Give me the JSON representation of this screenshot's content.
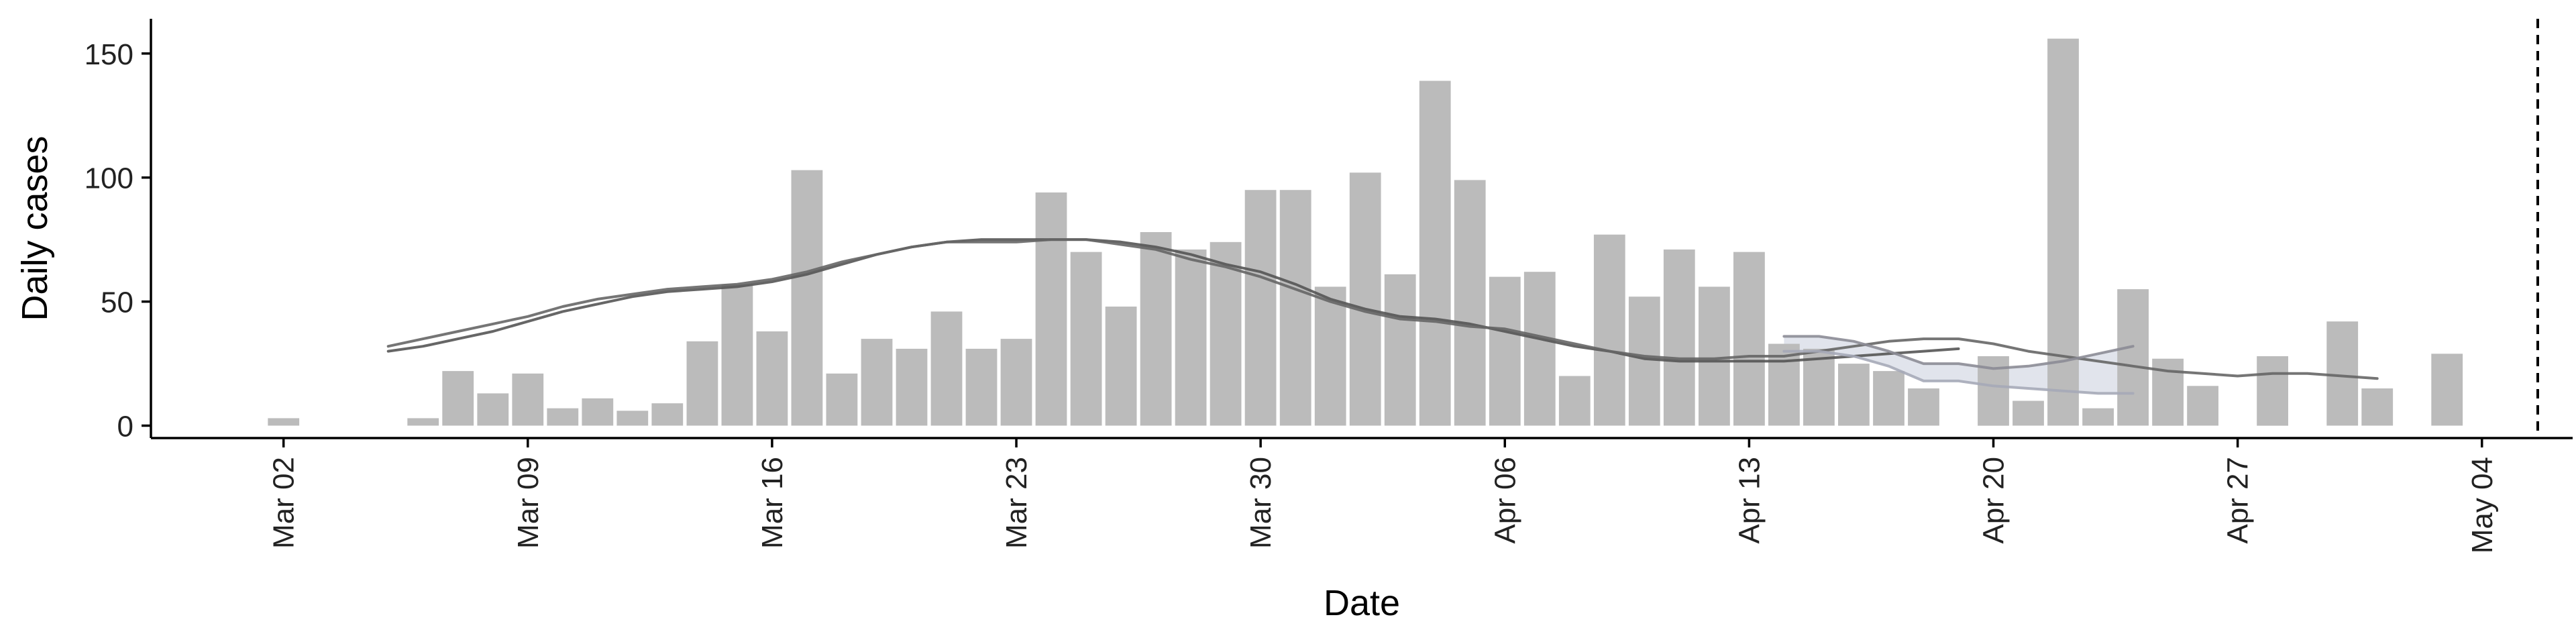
{
  "chart_data": {
    "type": "bar",
    "title": "",
    "xlabel": "Date",
    "ylabel": "Daily cases",
    "ylim": [
      -5,
      164
    ],
    "x_start_date": "2020-02-25",
    "xlim_days": [
      2.2,
      71.6
    ],
    "y_ticks": [
      0,
      50,
      100,
      150
    ],
    "x_ticks": [
      {
        "day": 6,
        "label": "Mar 02"
      },
      {
        "day": 13,
        "label": "Mar 09"
      },
      {
        "day": 20,
        "label": "Mar 16"
      },
      {
        "day": 27,
        "label": "Mar 23"
      },
      {
        "day": 34,
        "label": "Mar 30"
      },
      {
        "day": 41,
        "label": "Apr 06"
      },
      {
        "day": 48,
        "label": "Apr 13"
      },
      {
        "day": 55,
        "label": "Apr 20"
      },
      {
        "day": 62,
        "label": "Apr 27"
      },
      {
        "day": 69,
        "label": "May 04"
      }
    ],
    "bars": {
      "day_start": 6,
      "color": "#bbbbbb",
      "values": [
        3,
        0,
        0,
        0,
        3,
        22,
        13,
        21,
        7,
        11,
        6,
        9,
        34,
        57,
        38,
        103,
        21,
        35,
        31,
        46,
        31,
        35,
        94,
        70,
        48,
        78,
        71,
        74,
        95,
        95,
        56,
        102,
        61,
        139,
        99,
        60,
        62,
        20,
        77,
        52,
        71,
        56,
        70,
        33,
        31,
        25,
        22,
        15,
        0,
        28,
        10,
        156,
        7,
        55,
        27,
        16,
        0,
        28,
        0,
        42,
        15,
        0,
        29
      ]
    },
    "series": [
      {
        "name": "trend-1",
        "color": "#555555",
        "day_start": 9,
        "values": [
          30,
          32,
          35,
          38,
          42,
          46,
          49,
          52,
          54,
          55,
          56,
          58,
          61,
          65,
          69,
          72,
          74,
          75,
          75,
          75,
          75,
          74,
          72,
          69,
          65,
          62,
          57,
          51,
          47,
          44,
          43,
          41,
          38,
          35,
          32,
          30,
          27,
          26,
          26,
          26,
          26,
          27,
          28,
          29,
          30,
          31
        ]
      },
      {
        "name": "trend-2",
        "color": "#666666",
        "day_start": 9,
        "values": [
          32,
          35,
          38,
          41,
          44,
          48,
          51,
          53,
          55,
          56,
          57,
          59,
          62,
          66,
          69,
          72,
          74,
          74,
          74,
          75,
          75,
          73,
          71,
          67,
          64,
          60,
          55,
          50,
          46,
          43,
          42,
          40,
          39,
          36,
          33,
          30,
          28,
          27,
          27,
          28,
          28,
          30,
          32,
          34,
          35,
          35,
          33,
          30,
          28,
          26,
          24,
          22,
          21,
          20,
          21,
          21,
          20,
          19
        ]
      },
      {
        "name": "trend-3",
        "color": "#8c8c96",
        "day_start": 49,
        "values": [
          36,
          36,
          34,
          30,
          25,
          25,
          23,
          24,
          26,
          29,
          32
        ]
      },
      {
        "name": "trend-4",
        "color": "#a6aab8",
        "day_start": 49,
        "values": [
          30,
          30,
          28,
          24,
          18,
          18,
          16,
          15,
          14,
          13,
          13
        ]
      }
    ],
    "vline_day": 70.6
  }
}
